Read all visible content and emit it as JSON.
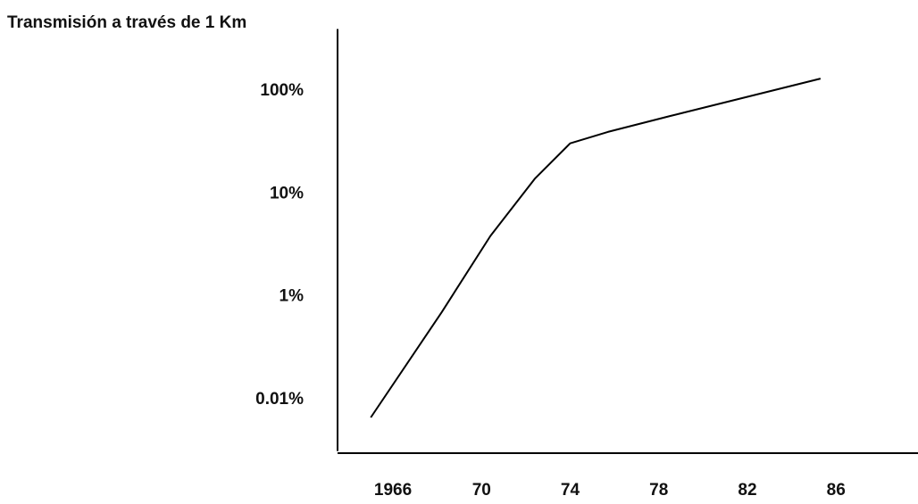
{
  "chart_data": {
    "type": "line",
    "title": "Transmisión a través de 1 Km",
    "x": [
      1965.0,
      1968.2,
      1970.4,
      1972.4,
      1974.0,
      1975.7,
      1978.5,
      1985.3
    ],
    "series": [
      {
        "color": "#000000",
        "values": [
          0.0045,
          0.5,
          3.9,
          14,
          31,
          40,
          57,
          132
        ]
      }
    ],
    "xlim": [
      1963.5,
      1989.7
    ],
    "xticks": [
      1966,
      {
        "value": 1970,
        "label": "70"
      },
      {
        "value": 1974,
        "label": "74"
      },
      {
        "value": 1978,
        "label": "78"
      },
      {
        "value": 1982,
        "label": "82"
      },
      {
        "value": 1986,
        "label": "86"
      }
    ],
    "ylim": [
      0.001,
      400
    ],
    "yticks": [
      {
        "value": 0.01,
        "label": "0.01%"
      },
      {
        "value": 1,
        "label": "1%"
      },
      {
        "value": 10,
        "label": "10%"
      },
      {
        "value": 100,
        "label": "100%"
      }
    ]
  }
}
